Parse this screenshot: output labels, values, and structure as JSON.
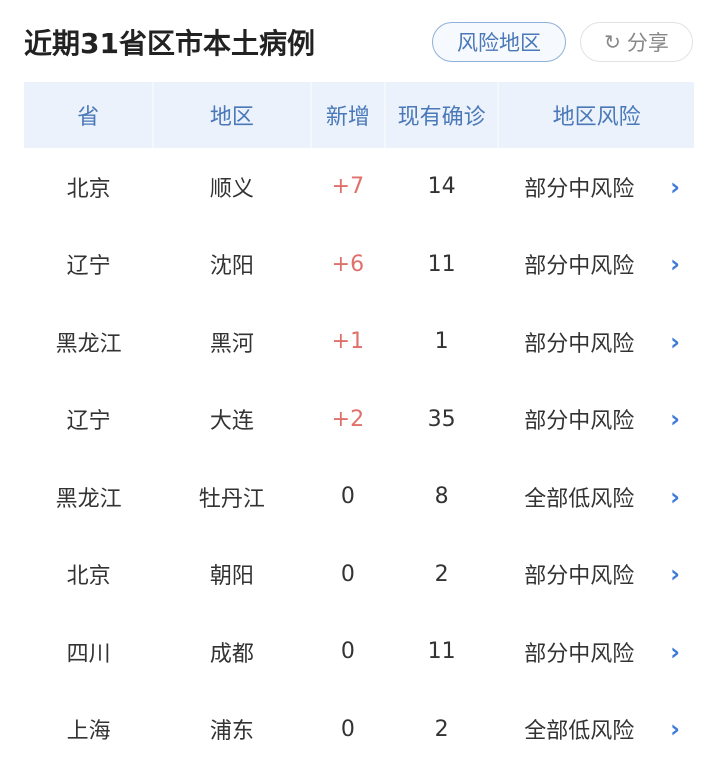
{
  "title": "近期31省区市本土病例",
  "buttons": {
    "risk_area": "风险地区",
    "share": "分享"
  },
  "columns": [
    "省",
    "地区",
    "新增",
    "现有确诊",
    "地区风险"
  ],
  "rows": [
    [
      "北京",
      "顺义",
      "+7",
      "14",
      "部分中风险"
    ],
    [
      "辽宁",
      "沈阳",
      "+6",
      "11",
      "部分中风险"
    ],
    [
      "黑龙江",
      "黑河",
      "+1",
      "1",
      "部分中风险"
    ],
    [
      "辽宁",
      "大连",
      "+2",
      "35",
      "部分中风险"
    ],
    [
      "黑龙江",
      "牡丹江",
      "0",
      "8",
      "全部低风险"
    ],
    [
      "北京",
      "朝阳",
      "0",
      "2",
      "部分中风险"
    ],
    [
      "四川",
      "成都",
      "0",
      "11",
      "部分中风险"
    ],
    [
      "上海",
      "浦东",
      "0",
      "2",
      "全部低风险"
    ]
  ],
  "colors": {
    "accent": "#4a78b8",
    "increase": "#e0706a",
    "header_bg": "#ebf2fc"
  }
}
